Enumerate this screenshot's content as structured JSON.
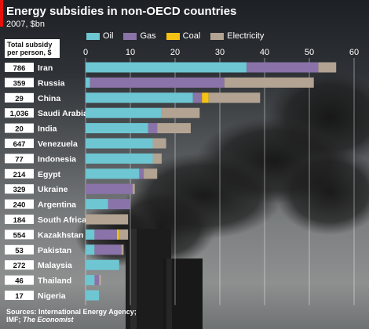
{
  "title": "Energy subsidies in non-OECD countries",
  "subtitle": "2007, $bn",
  "column_header": "Total subsidy per person, $",
  "source_line1": "Sources: International Energy Agency;",
  "source_line2_prefix": "IMF; ",
  "source_line2_publication": "The Economist",
  "colors": {
    "Oil": "#6ec6d2",
    "Gas": "#8a73a8",
    "Coal": "#f4c215",
    "Electricity": "#b2a392",
    "accent": "#e3120b"
  },
  "chart_data": {
    "type": "bar",
    "orientation": "horizontal",
    "stacked": true,
    "xlim": [
      0,
      60
    ],
    "ticks": [
      0,
      10,
      20,
      30,
      40,
      50,
      60
    ],
    "grid": true,
    "legend_position": "top",
    "categories": [
      "Iran",
      "Russia",
      "China",
      "Saudi Arabia",
      "India",
      "Venezuela",
      "Indonesia",
      "Egypt",
      "Ukraine",
      "Argentina",
      "South Africa",
      "Kazakhstan",
      "Pakistan",
      "Malaysia",
      "Thailand",
      "Nigeria"
    ],
    "per_person": [
      "786",
      "359",
      "29",
      "1,036",
      "20",
      "647",
      "77",
      "214",
      "329",
      "240",
      "184",
      "554",
      "53",
      "272",
      "46",
      "17"
    ],
    "series": [
      {
        "name": "Oil",
        "values": [
          36,
          1,
          24,
          17,
          14,
          15,
          15,
          12,
          0,
          5,
          0,
          2,
          2,
          7.5,
          2,
          3
        ]
      },
      {
        "name": "Gas",
        "values": [
          16,
          30,
          2,
          0,
          2,
          0,
          0,
          1,
          10.5,
          5,
          0,
          5,
          6,
          0,
          1,
          0
        ]
      },
      {
        "name": "Coal",
        "values": [
          0,
          0,
          1.5,
          0,
          0,
          0,
          0,
          0,
          0,
          0,
          0,
          0.5,
          0,
          0,
          0,
          0
        ]
      },
      {
        "name": "Electricity",
        "values": [
          4,
          20,
          11.5,
          8.5,
          7.5,
          3,
          2,
          3,
          0.5,
          0,
          9.5,
          2,
          0.5,
          0,
          0.5,
          0
        ]
      }
    ]
  }
}
